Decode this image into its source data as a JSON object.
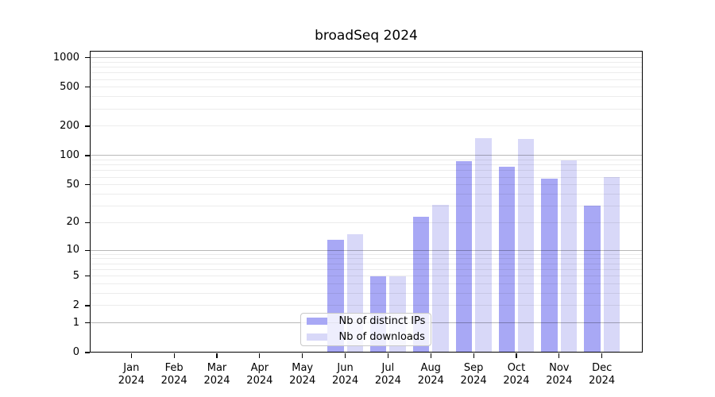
{
  "title": "broadSeq 2024",
  "legend": {
    "items": [
      {
        "label": "Nb of distinct IPs",
        "color": "#a8a8f5"
      },
      {
        "label": "Nb of downloads",
        "color": "#d8d8f8"
      }
    ]
  },
  "chart_data": {
    "type": "bar",
    "title": "broadSeq 2024",
    "categories": [
      "Jan 2024",
      "Feb 2024",
      "Mar 2024",
      "Apr 2024",
      "May 2024",
      "Jun 2024",
      "Jul 2024",
      "Aug 2024",
      "Sep 2024",
      "Oct 2024",
      "Nov 2024",
      "Dec 2024"
    ],
    "series": [
      {
        "name": "Nb of distinct IPs",
        "color": "#a8a8f5",
        "values": [
          0,
          0,
          0,
          0,
          0,
          13,
          5,
          23,
          87,
          77,
          58,
          30
        ]
      },
      {
        "name": "Nb of downloads",
        "color": "#d8d8f8",
        "values": [
          0,
          0,
          0,
          0,
          0,
          15,
          5,
          31,
          150,
          147,
          90,
          60
        ]
      }
    ],
    "xlabel": "",
    "ylabel": "",
    "yscale": "log1p",
    "yticks": [
      0,
      1,
      2,
      5,
      10,
      20,
      50,
      100,
      200,
      500,
      1000
    ],
    "ylim": [
      0,
      1100
    ],
    "grid": true,
    "grid_major_at": [
      1,
      10,
      100,
      1000
    ],
    "legend_position": "lower-center-inside"
  },
  "colors": {
    "background": "#ffffff",
    "spine": "#000000",
    "grid_major": "#b0b0b0",
    "grid_minor": "#ebebeb",
    "text": "#000000"
  }
}
